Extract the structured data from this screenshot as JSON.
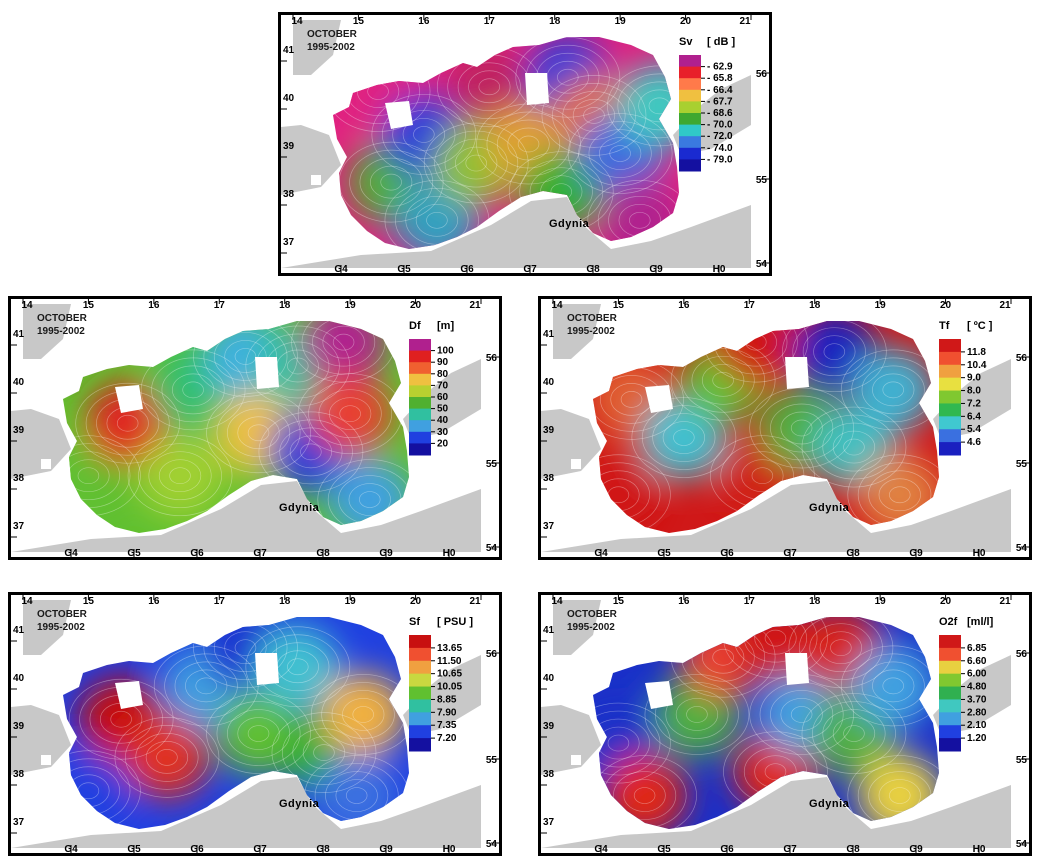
{
  "common": {
    "month": "OCTOBER",
    "period": "1995-2002",
    "city": "Gdynia",
    "top_lon_labels": [
      "14",
      "15",
      "16",
      "17",
      "18",
      "19",
      "20",
      "21"
    ],
    "bottom_cell_labels": [
      "G4",
      "G5",
      "G6",
      "G7",
      "G8",
      "G9",
      "H0"
    ],
    "left_lat_labels": [
      "41",
      "40",
      "39",
      "38",
      "37"
    ],
    "right_lat_labels": [
      "56",
      "55",
      "54"
    ],
    "land_color": "#c8c8c8"
  },
  "panels": [
    {
      "id": "sv",
      "param_label": "Sv",
      "unit_label": "[ dB ]",
      "legend_values": [
        "- 62.9",
        "- 65.8",
        "- 66.4",
        "- 67.7",
        "- 68.6",
        "- 70.0",
        "- 72.0",
        "- 74.0",
        "- 79.0"
      ],
      "legend_colors": [
        "#b0208e",
        "#e8202a",
        "#ff7a4a",
        "#f0c040",
        "#a8d030",
        "#3ea830",
        "#30c8c8",
        "#3a7ae0",
        "#1a2ad0",
        "#1410a0"
      ],
      "field": [
        {
          "lon": 15.3,
          "lat": 40.1,
          "color": "#e02080"
        },
        {
          "lon": 15.5,
          "lat": 38.2,
          "color": "#50b030"
        },
        {
          "lon": 16.0,
          "lat": 39.2,
          "color": "#2a40d8"
        },
        {
          "lon": 16.2,
          "lat": 37.4,
          "color": "#30a0c0"
        },
        {
          "lon": 17.0,
          "lat": 40.2,
          "color": "#c02060"
        },
        {
          "lon": 16.8,
          "lat": 38.6,
          "color": "#90c030"
        },
        {
          "lon": 17.6,
          "lat": 39.0,
          "color": "#e0a030"
        },
        {
          "lon": 18.2,
          "lat": 40.4,
          "color": "#2a40d8"
        },
        {
          "lon": 18.1,
          "lat": 38.0,
          "color": "#30b030"
        },
        {
          "lon": 18.6,
          "lat": 39.6,
          "color": "#e07040"
        },
        {
          "lon": 19.0,
          "lat": 38.8,
          "color": "#3a6ae0"
        },
        {
          "lon": 19.3,
          "lat": 37.4,
          "color": "#b0208e"
        },
        {
          "lon": 19.6,
          "lat": 39.8,
          "color": "#40c8c0"
        }
      ]
    },
    {
      "id": "df",
      "param_label": "Df",
      "unit_label": "[m]",
      "legend_values": [
        "100",
        "90",
        "80",
        "70",
        "60",
        "50",
        "40",
        "30",
        "20"
      ],
      "legend_colors": [
        "#b0208e",
        "#e02020",
        "#f06030",
        "#f0c040",
        "#b8d030",
        "#50b030",
        "#30c0a0",
        "#40a0e0",
        "#2040e0",
        "#1410a0"
      ],
      "field": [
        {
          "lon": 15.0,
          "lat": 38.0,
          "color": "#60c030"
        },
        {
          "lon": 15.6,
          "lat": 39.1,
          "color": "#e02020"
        },
        {
          "lon": 16.4,
          "lat": 38.0,
          "color": "#a0d030"
        },
        {
          "lon": 16.6,
          "lat": 39.8,
          "color": "#30c070"
        },
        {
          "lon": 17.4,
          "lat": 40.5,
          "color": "#40b0e0"
        },
        {
          "lon": 17.6,
          "lat": 38.9,
          "color": "#f0c040"
        },
        {
          "lon": 18.2,
          "lat": 40.3,
          "color": "#30c0a0"
        },
        {
          "lon": 18.4,
          "lat": 38.5,
          "color": "#2a40d8"
        },
        {
          "lon": 18.9,
          "lat": 40.8,
          "color": "#b0208e"
        },
        {
          "lon": 19.0,
          "lat": 39.3,
          "color": "#e84030"
        },
        {
          "lon": 19.3,
          "lat": 37.5,
          "color": "#40a0e0"
        }
      ]
    },
    {
      "id": "tf",
      "param_label": "Tf",
      "unit_label": "[ ºC ]",
      "legend_values": [
        "11.8",
        "10.4",
        "9.0",
        "8.0",
        "7.2",
        "6.4",
        "5.4",
        "4.6"
      ],
      "legend_colors": [
        "#d01818",
        "#f05030",
        "#f0a040",
        "#e8e040",
        "#80c830",
        "#30b850",
        "#40c8d0",
        "#3a70e0",
        "#1a20c0"
      ],
      "field": [
        {
          "lon": 15.0,
          "lat": 37.6,
          "color": "#d01818"
        },
        {
          "lon": 15.2,
          "lat": 39.6,
          "color": "#e06030"
        },
        {
          "lon": 16.0,
          "lat": 38.8,
          "color": "#40c0d0"
        },
        {
          "lon": 16.6,
          "lat": 40.0,
          "color": "#60c030"
        },
        {
          "lon": 17.1,
          "lat": 40.8,
          "color": "#d01818"
        },
        {
          "lon": 17.2,
          "lat": 38.0,
          "color": "#d02018"
        },
        {
          "lon": 17.8,
          "lat": 39.0,
          "color": "#50b040"
        },
        {
          "lon": 18.3,
          "lat": 40.6,
          "color": "#1a20c0"
        },
        {
          "lon": 18.6,
          "lat": 38.6,
          "color": "#40c0c0"
        },
        {
          "lon": 19.2,
          "lat": 39.8,
          "color": "#40b0d0"
        },
        {
          "lon": 19.3,
          "lat": 37.6,
          "color": "#e08040"
        }
      ]
    },
    {
      "id": "sf",
      "param_label": "Sf",
      "unit_label": "[ PSU ]",
      "legend_values": [
        "13.65",
        "11.50",
        "10.65",
        "10.05",
        "8.85",
        "7.90",
        "7.35",
        "7.20"
      ],
      "legend_colors": [
        "#c81010",
        "#f05030",
        "#f0a040",
        "#c8d840",
        "#60c030",
        "#30c0a0",
        "#40a0e0",
        "#2040e0",
        "#1410a0"
      ],
      "field": [
        {
          "lon": 15.0,
          "lat": 37.6,
          "color": "#2040e0"
        },
        {
          "lon": 15.5,
          "lat": 39.1,
          "color": "#c81010"
        },
        {
          "lon": 16.2,
          "lat": 38.3,
          "color": "#e03020"
        },
        {
          "lon": 16.8,
          "lat": 39.8,
          "color": "#40a0e0"
        },
        {
          "lon": 17.4,
          "lat": 40.6,
          "color": "#1a30d0"
        },
        {
          "lon": 17.6,
          "lat": 38.8,
          "color": "#60c030"
        },
        {
          "lon": 18.2,
          "lat": 40.2,
          "color": "#40c0d0"
        },
        {
          "lon": 18.6,
          "lat": 38.4,
          "color": "#30b030"
        },
        {
          "lon": 19.2,
          "lat": 39.2,
          "color": "#f0b040"
        },
        {
          "lon": 19.1,
          "lat": 37.5,
          "color": "#3a70e0"
        }
      ]
    },
    {
      "id": "o2f",
      "param_label": "O2f",
      "unit_label": "[ml/l]",
      "legend_values": [
        "6.85",
        "6.60",
        "6.00",
        "4.80",
        "3.70",
        "2.80",
        "2.10",
        "1.20"
      ],
      "legend_colors": [
        "#d01818",
        "#f05030",
        "#e8d040",
        "#80c830",
        "#30b050",
        "#40c8c0",
        "#40a0e0",
        "#2040e0",
        "#1410a0"
      ],
      "field": [
        {
          "lon": 15.0,
          "lat": 38.6,
          "color": "#1a30c8"
        },
        {
          "lon": 15.4,
          "lat": 37.5,
          "color": "#e02818"
        },
        {
          "lon": 16.2,
          "lat": 39.2,
          "color": "#50b040"
        },
        {
          "lon": 16.6,
          "lat": 40.4,
          "color": "#e84030"
        },
        {
          "lon": 17.4,
          "lat": 40.8,
          "color": "#d01818"
        },
        {
          "lon": 17.4,
          "lat": 38.0,
          "color": "#e02818"
        },
        {
          "lon": 17.8,
          "lat": 39.2,
          "color": "#40a0e0"
        },
        {
          "lon": 18.4,
          "lat": 40.6,
          "color": "#d82018"
        },
        {
          "lon": 18.6,
          "lat": 38.8,
          "color": "#50b040"
        },
        {
          "lon": 19.2,
          "lat": 39.8,
          "color": "#40a0e0"
        },
        {
          "lon": 19.3,
          "lat": 37.5,
          "color": "#e8d040"
        }
      ]
    }
  ]
}
